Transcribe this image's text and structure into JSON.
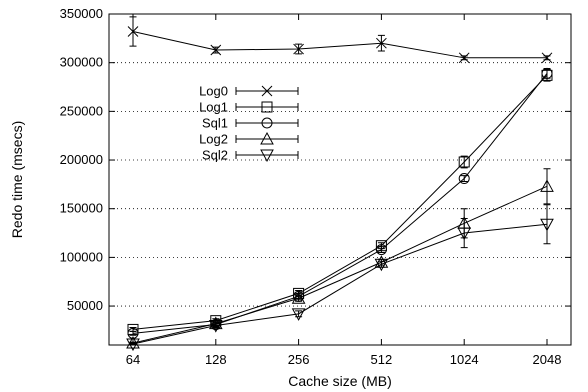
{
  "chart_data": {
    "type": "line",
    "x_scale": "log2",
    "x": [
      64,
      128,
      256,
      512,
      1024,
      2048
    ],
    "x_tick_labels": [
      "64",
      "128",
      "256",
      "512",
      "1024",
      "2048"
    ],
    "y_ticks": [
      50000,
      100000,
      150000,
      200000,
      250000,
      300000,
      350000
    ],
    "y_tick_labels": [
      "50000",
      "100000",
      "150000",
      "200000",
      "250000",
      "300000",
      "350000"
    ],
    "xlabel": "Cache size (MB)",
    "ylabel": "Redo time (msecs)",
    "xlim": [
      64,
      2048
    ],
    "ylim": [
      10000,
      350000
    ],
    "grid": "horizontal-dotted",
    "legend_position": "upper-left",
    "series": [
      {
        "name": "Log0",
        "marker": "x",
        "values": [
          332000,
          313000,
          314000,
          320000,
          305000,
          305000
        ],
        "errors": [
          15000,
          3000,
          5000,
          8000,
          2000,
          2000
        ]
      },
      {
        "name": "Log1",
        "marker": "square",
        "values": [
          26000,
          35000,
          63000,
          112000,
          198000,
          287000
        ],
        "errors": [
          2000,
          2000,
          3000,
          3000,
          6000,
          6000
        ]
      },
      {
        "name": "Sql1",
        "marker": "circle",
        "values": [
          22000,
          31000,
          60000,
          108000,
          181000,
          289000
        ],
        "errors": [
          2000,
          2000,
          3000,
          3000,
          3000,
          5000
        ]
      },
      {
        "name": "Log2",
        "marker": "triangle-up",
        "values": [
          12000,
          32000,
          58000,
          95000,
          135000,
          173000
        ],
        "errors": [
          1000,
          2000,
          3000,
          3000,
          15000,
          18000
        ]
      },
      {
        "name": "Sql2",
        "marker": "triangle-down",
        "values": [
          11000,
          30000,
          42000,
          93000,
          125000,
          134000
        ],
        "errors": [
          1000,
          2000,
          3000,
          3000,
          15000,
          20000
        ]
      }
    ]
  }
}
